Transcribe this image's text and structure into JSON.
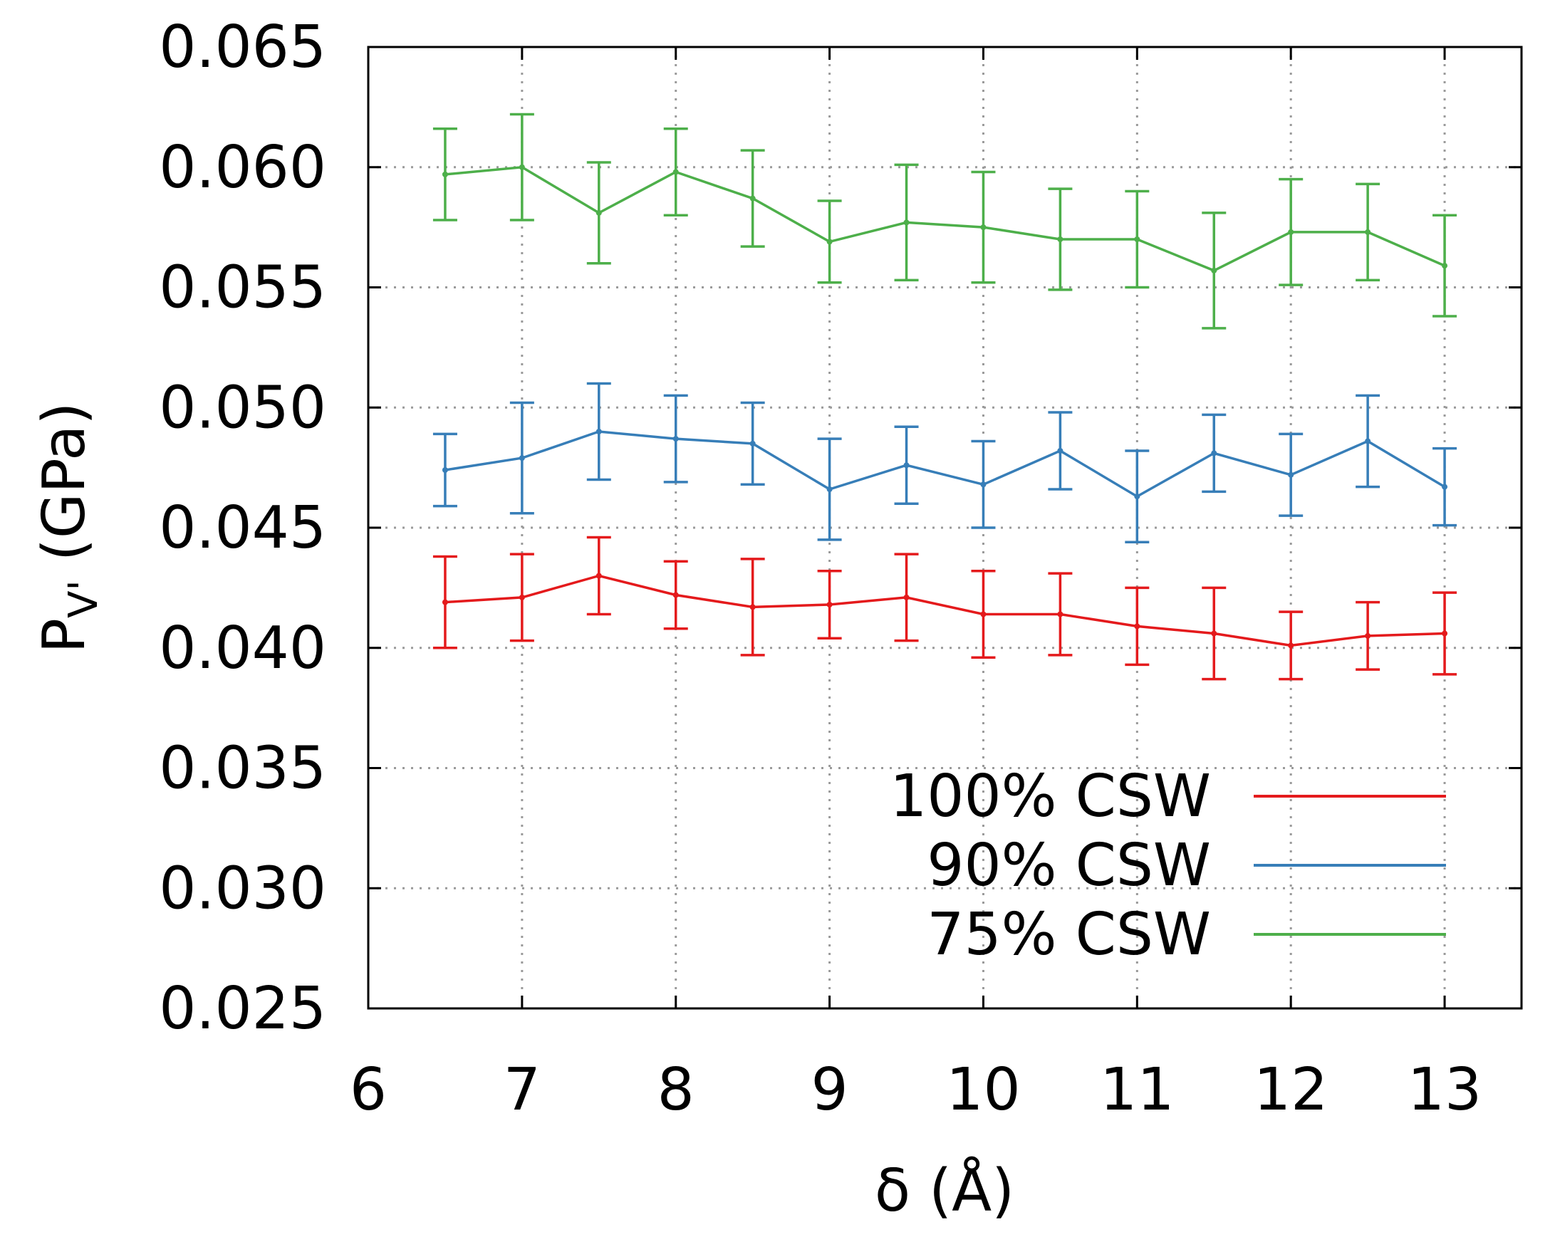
{
  "chart_data": {
    "type": "line",
    "title": "",
    "xlabel": "δ (Å)",
    "ylabel_main": "P",
    "ylabel_sub": "V'",
    "ylabel_unit": " (GPa)",
    "xlim": [
      6,
      13.5
    ],
    "ylim": [
      0.025,
      0.065
    ],
    "xticks": [
      6,
      7,
      8,
      9,
      10,
      11,
      12,
      13
    ],
    "yticks": [
      0.025,
      0.03,
      0.035,
      0.04,
      0.045,
      0.05,
      0.055,
      0.06,
      0.065
    ],
    "ytick_labels": [
      "0.025",
      "0.030",
      "0.035",
      "0.040",
      "0.045",
      "0.050",
      "0.055",
      "0.060",
      "0.065"
    ],
    "grid": true,
    "legend_position": "bottom-right",
    "x": [
      6.5,
      7,
      7.5,
      8,
      8.5,
      9,
      9.5,
      10,
      10.5,
      11,
      11.5,
      12,
      12.5,
      13
    ],
    "series": [
      {
        "name": "100% CSW",
        "color": "#e41a1c",
        "values": [
          0.0419,
          0.0421,
          0.043,
          0.0422,
          0.0417,
          0.0418,
          0.0421,
          0.0414,
          0.0414,
          0.0409,
          0.0406,
          0.0401,
          0.0405,
          0.0406
        ],
        "errors": [
          0.0019,
          0.0018,
          0.0016,
          0.0014,
          0.002,
          0.0014,
          0.0018,
          0.0018,
          0.0017,
          0.0016,
          0.0019,
          0.0014,
          0.0014,
          0.0017
        ]
      },
      {
        "name": "90% CSW",
        "color": "#377eb8",
        "values": [
          0.0474,
          0.0479,
          0.049,
          0.0487,
          0.0485,
          0.0466,
          0.0476,
          0.0468,
          0.0482,
          0.0463,
          0.0481,
          0.0472,
          0.0486,
          0.0467
        ],
        "errors": [
          0.0015,
          0.0023,
          0.002,
          0.0018,
          0.0017,
          0.0021,
          0.0016,
          0.0018,
          0.0016,
          0.0019,
          0.0016,
          0.0017,
          0.0019,
          0.0016
        ]
      },
      {
        "name": "75% CSW",
        "color": "#4daf4a",
        "values": [
          0.0597,
          0.06,
          0.0581,
          0.0598,
          0.0587,
          0.0569,
          0.0577,
          0.0575,
          0.057,
          0.057,
          0.0557,
          0.0573,
          0.0573,
          0.0559
        ],
        "errors": [
          0.0019,
          0.0022,
          0.0021,
          0.0018,
          0.002,
          0.0017,
          0.0024,
          0.0023,
          0.0021,
          0.002,
          0.0024,
          0.0022,
          0.002,
          0.0021
        ]
      }
    ]
  }
}
